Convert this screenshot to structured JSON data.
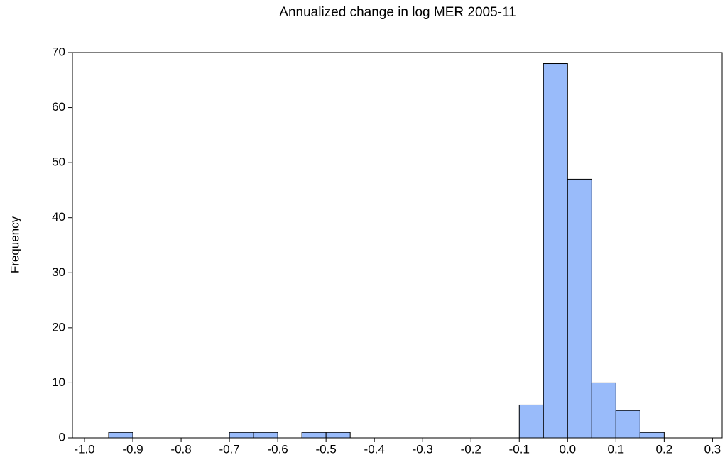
{
  "chart_data": {
    "type": "histogram",
    "title": "Annualized change in log MER 2005-11",
    "y_label": "Frequency",
    "bins": [
      -0.95,
      -0.9,
      -0.85,
      -0.8,
      -0.75,
      -0.7,
      -0.65,
      -0.6,
      -0.55,
      -0.5,
      -0.45,
      -0.4,
      -0.35,
      -0.3,
      -0.25,
      -0.2,
      -0.15,
      -0.1,
      -0.05,
      0,
      0.05,
      0.1,
      0.15,
      0.2
    ],
    "values": [
      1,
      0,
      0,
      0,
      0,
      1,
      1,
      0,
      1,
      1,
      0,
      0,
      0,
      0,
      0,
      0,
      0,
      6,
      68,
      47,
      10,
      5,
      1
    ],
    "color": "#99bbfa",
    "xlim": [
      -1.025,
      0.32
    ],
    "ylim": [
      0,
      70
    ],
    "xticks": [
      {
        "value": -1,
        "label": "-1.0"
      },
      -0.9,
      -0.8,
      -0.7,
      -0.6,
      -0.5,
      -0.4,
      -0.3,
      -0.2,
      -0.1,
      {
        "value": 0,
        "label": "0.0"
      },
      0.1,
      0.2,
      0.3
    ],
    "yticks": [
      0,
      10,
      20,
      30,
      40,
      50,
      60,
      70
    ]
  }
}
